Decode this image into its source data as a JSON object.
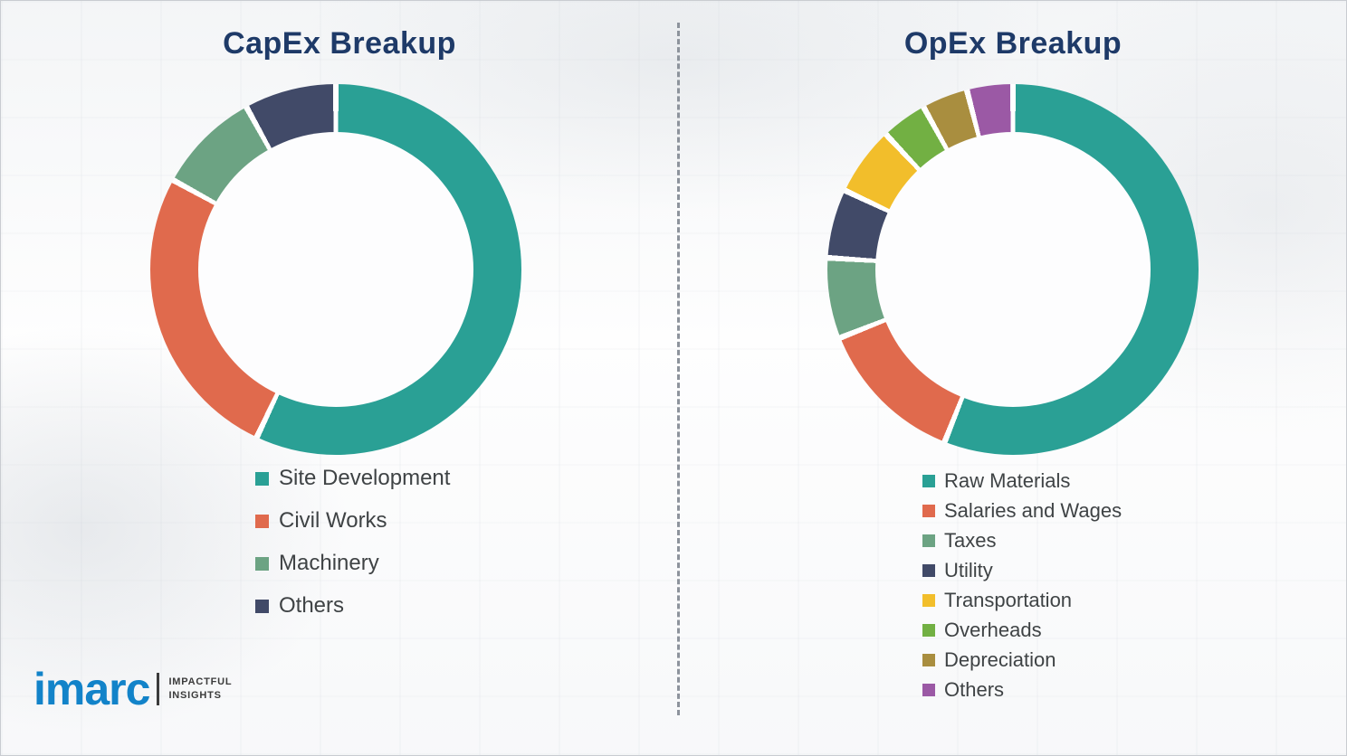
{
  "chart_data": [
    {
      "type": "pie",
      "subtype": "donut",
      "title": "CapEx Breakup",
      "legend_position": "bottom-left",
      "segments": [
        {
          "label": "Site Development",
          "value": 57,
          "color": "#2AA095"
        },
        {
          "label": "Civil Works",
          "value": 26,
          "color": "#E06A4D"
        },
        {
          "label": "Machinery",
          "value": 9,
          "color": "#6CA383"
        },
        {
          "label": "Others",
          "value": 8,
          "color": "#414A68"
        }
      ]
    },
    {
      "type": "pie",
      "subtype": "donut",
      "title": "OpEx Breakup",
      "legend_position": "bottom-left",
      "segments": [
        {
          "label": "Raw Materials",
          "value": 56,
          "color": "#2AA095"
        },
        {
          "label": "Salaries and Wages",
          "value": 13,
          "color": "#E06A4D"
        },
        {
          "label": "Taxes",
          "value": 7,
          "color": "#6CA383"
        },
        {
          "label": "Utility",
          "value": 6,
          "color": "#414A68"
        },
        {
          "label": "Transportation",
          "value": 6,
          "color": "#F2BE2B"
        },
        {
          "label": "Overheads",
          "value": 4,
          "color": "#72B043"
        },
        {
          "label": "Depreciation",
          "value": 4,
          "color": "#A98E3F"
        },
        {
          "label": "Others",
          "value": 4,
          "color": "#9B59A5"
        }
      ]
    }
  ],
  "style": {
    "title_color": "#1E3A68",
    "legend_text_color": "#3f4345",
    "divider_color": "#8d939c",
    "gap_color": "#ffffff"
  },
  "logo": {
    "text": "imarc",
    "tagline_line1": "IMPACTFUL",
    "tagline_line2": "INSIGHTS"
  }
}
